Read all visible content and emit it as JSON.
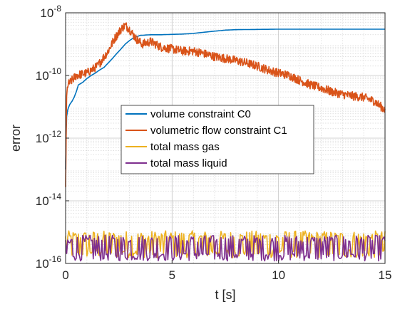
{
  "chart_data": {
    "type": "line",
    "title": "",
    "xlabel": "t [s]",
    "ylabel": "error",
    "yscale": "log",
    "xlim": [
      0,
      15
    ],
    "ylim": [
      1e-16,
      1e-08
    ],
    "grid": true,
    "minor_grid": true,
    "legend_position": "center",
    "x_ticks": [
      {
        "value": 0,
        "label": "0"
      },
      {
        "value": 5,
        "label": "5"
      },
      {
        "value": 10,
        "label": "10"
      },
      {
        "value": 15,
        "label": "15"
      }
    ],
    "y_ticks": [
      {
        "exp": -16,
        "base": "10",
        "power": "-16"
      },
      {
        "exp": -14,
        "base": "10",
        "power": "-14"
      },
      {
        "exp": -12,
        "base": "10",
        "power": "-12"
      },
      {
        "exp": -10,
        "base": "10",
        "power": "-10"
      },
      {
        "exp": -8,
        "base": "10",
        "power": "-8"
      }
    ],
    "series": [
      {
        "name": "volume constraint C0",
        "color": "#0072BD",
        "x": [
          0,
          0.02,
          0.05,
          0.1,
          0.15,
          0.2,
          0.3,
          0.4,
          0.5,
          0.6,
          0.8,
          1.0,
          1.2,
          1.4,
          1.6,
          1.8,
          2.0,
          2.2,
          2.4,
          2.6,
          2.8,
          3.0,
          3.2,
          3.5,
          4.0,
          4.5,
          5.0,
          5.5,
          6.0,
          6.5,
          7.0,
          7.5,
          8.0,
          9.0,
          10.0,
          11.0,
          12.0,
          13.0,
          14.0,
          15.0
        ],
        "y": [
          1e-13,
          1e-12,
          5e-12,
          8e-12,
          1e-11,
          1.2e-11,
          1.5e-11,
          2e-11,
          3e-11,
          5e-11,
          6e-11,
          8e-11,
          1e-10,
          1.2e-10,
          1.5e-10,
          1.8e-10,
          2.5e-10,
          3.5e-10,
          5e-10,
          7e-10,
          1e-09,
          1.3e-09,
          1.6e-09,
          1.9e-09,
          2e-09,
          2e-09,
          2.05e-09,
          2.1e-09,
          2.2e-09,
          2.4e-09,
          2.6e-09,
          2.8e-09,
          2.9e-09,
          2.95e-09,
          3e-09,
          3e-09,
          3e-09,
          3e-09,
          3e-09,
          3e-09
        ]
      },
      {
        "name": "volumetric flow constraint C1",
        "color": "#D95319",
        "x": [
          0,
          0.05,
          0.1,
          0.3,
          0.5,
          1.0,
          1.5,
          2.0,
          2.3,
          2.6,
          2.8,
          3.0,
          3.3,
          3.6,
          4.0,
          4.5,
          5.0,
          5.5,
          6.0,
          6.5,
          7.0,
          7.5,
          8.0,
          8.5,
          9.0,
          9.5,
          10.0,
          10.5,
          11.0,
          11.5,
          12.0,
          12.5,
          13.0,
          13.5,
          14.0,
          14.5,
          15.0
        ],
        "y": [
          3e-14,
          2e-11,
          5e-11,
          7e-11,
          1e-10,
          1.2e-10,
          2e-10,
          6e-10,
          1.5e-09,
          3e-09,
          4e-09,
          3e-09,
          1.5e-09,
          1e-09,
          1.2e-09,
          8e-10,
          7e-10,
          6e-10,
          6e-10,
          5e-10,
          4e-10,
          3.5e-10,
          3e-10,
          2.5e-10,
          2e-10,
          1.5e-10,
          1.2e-10,
          1e-10,
          7e-11,
          5e-11,
          4e-11,
          3e-11,
          2.5e-11,
          2.2e-11,
          2e-11,
          1.5e-11,
          8e-12
        ]
      },
      {
        "name": "total mass gas",
        "color": "#EDB120",
        "x": [
          0,
          15
        ],
        "y": [
          4e-16,
          4e-16
        ],
        "noise_band": [
          1.5e-16,
          1.1e-15
        ]
      },
      {
        "name": "total mass liquid",
        "color": "#7E2F8E",
        "x": [
          0,
          15
        ],
        "y": [
          3e-16,
          3e-16
        ],
        "noise_band": [
          1.2e-16,
          8e-16
        ]
      }
    ]
  }
}
